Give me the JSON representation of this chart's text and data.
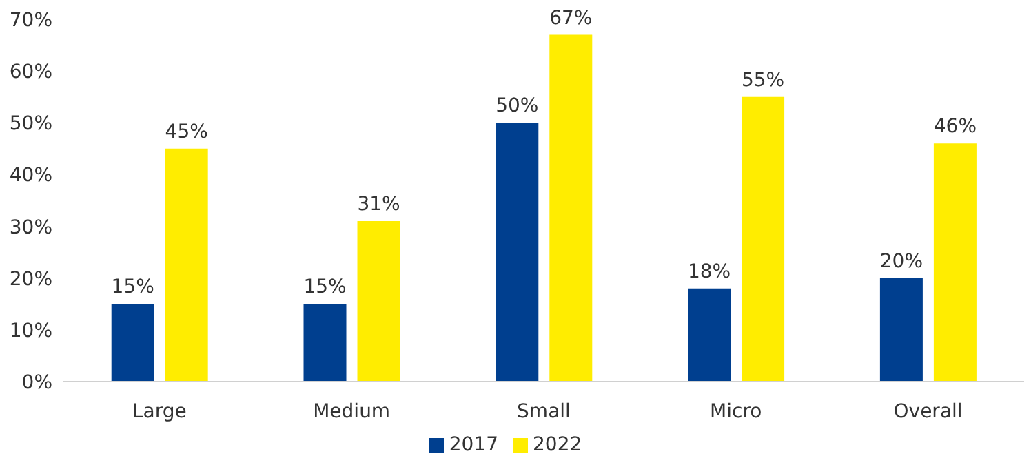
{
  "chart_data": {
    "type": "bar",
    "categories": [
      "Large",
      "Medium",
      "Small",
      "Micro",
      "Overall"
    ],
    "series": [
      {
        "name": "2017",
        "color": "#003f8f",
        "values": [
          15,
          15,
          50,
          18,
          20
        ],
        "value_labels": [
          "15%",
          "15%",
          "50%",
          "18%",
          "20%"
        ]
      },
      {
        "name": "2022",
        "color": "#ffed00",
        "values": [
          45,
          31,
          67,
          55,
          46
        ],
        "value_labels": [
          "45%",
          "31%",
          "67%",
          "55%",
          "46%"
        ]
      }
    ],
    "ylim": [
      0,
      70
    ],
    "yticks": [
      {
        "value": 0,
        "label": "0%"
      },
      {
        "value": 10,
        "label": "10%"
      },
      {
        "value": 20,
        "label": "20%"
      },
      {
        "value": 30,
        "label": "30%"
      },
      {
        "value": 40,
        "label": "40%"
      },
      {
        "value": 50,
        "label": "50%"
      },
      {
        "value": 60,
        "label": "60%"
      },
      {
        "value": 70,
        "label": "70%"
      }
    ],
    "grid": false,
    "legend": "bottom"
  }
}
